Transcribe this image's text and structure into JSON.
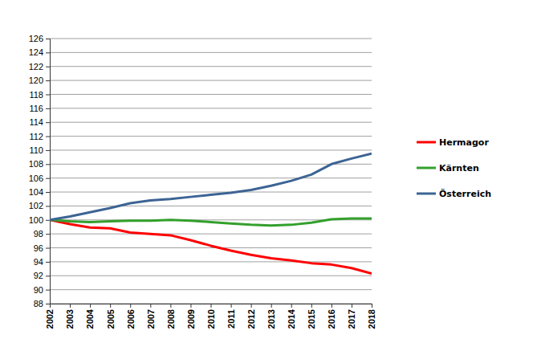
{
  "chart_data": {
    "type": "line",
    "x": [
      2002,
      2003,
      2004,
      2005,
      2006,
      2007,
      2008,
      2009,
      2010,
      2011,
      2012,
      2013,
      2014,
      2015,
      2016,
      2017,
      2018
    ],
    "xlim": [
      2002,
      2018
    ],
    "xticks": [
      2002,
      2003,
      2004,
      2005,
      2006,
      2007,
      2008,
      2009,
      2010,
      2011,
      2012,
      2013,
      2014,
      2015,
      2016,
      2017,
      2018
    ],
    "ylim": [
      88,
      126
    ],
    "yticks": [
      88,
      90,
      92,
      94,
      96,
      98,
      100,
      102,
      104,
      106,
      108,
      110,
      112,
      114,
      116,
      118,
      120,
      122,
      124,
      126
    ],
    "grid": true,
    "legend": "right",
    "series": [
      {
        "name": "Hermagor",
        "color": "#ff0000",
        "values": [
          100,
          99.4,
          98.9,
          98.8,
          98.2,
          98.0,
          97.8,
          97.1,
          96.3,
          95.6,
          95.0,
          94.5,
          94.2,
          93.8,
          93.6,
          93.1,
          92.3
        ]
      },
      {
        "name": "Kärnten",
        "color": "#33a02c",
        "values": [
          100,
          99.8,
          99.7,
          99.8,
          99.9,
          99.9,
          100.0,
          99.9,
          99.7,
          99.5,
          99.3,
          99.2,
          99.3,
          99.6,
          100.1,
          100.2,
          100.2
        ]
      },
      {
        "name": "Österreich",
        "color": "#3d6494",
        "values": [
          100,
          100.5,
          101.1,
          101.7,
          102.4,
          102.8,
          103.0,
          103.3,
          103.6,
          103.9,
          104.3,
          104.9,
          105.6,
          106.5,
          108.0,
          108.8,
          109.5
        ]
      }
    ]
  }
}
